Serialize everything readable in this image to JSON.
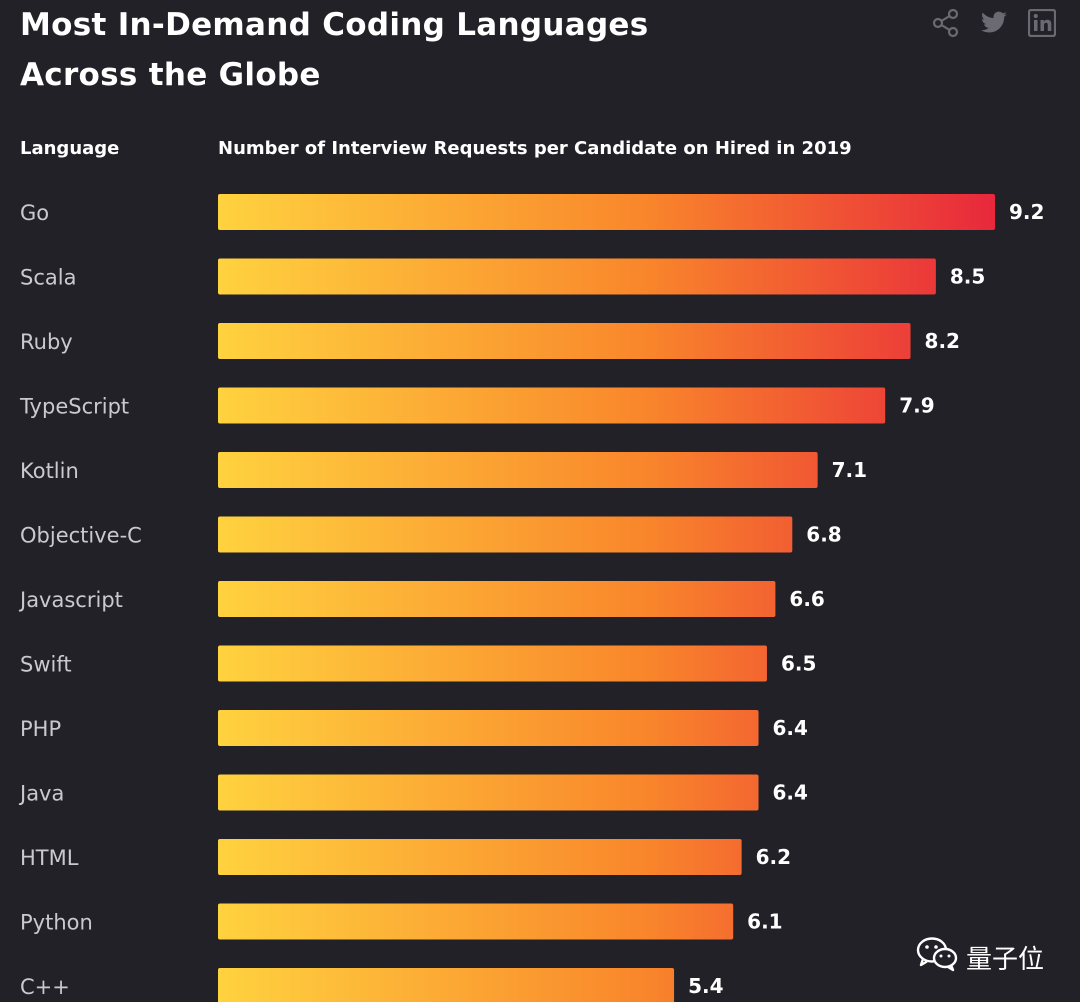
{
  "page": {
    "title_lines": [
      "Most In-Demand Coding Languages",
      "Across the Globe"
    ],
    "icons": [
      "share-icon",
      "twitter-icon",
      "linkedin-icon"
    ],
    "watermark_text": "量子位",
    "watermark_icon": "wechat-icon"
  },
  "chart_data": {
    "type": "bar",
    "orientation": "horizontal",
    "title": "Most In-Demand Coding Languages Across the Globe",
    "category_header": "Language",
    "value_header": "Number of Interview Requests per Candidate on Hired in 2019",
    "categories": [
      "Go",
      "Scala",
      "Ruby",
      "TypeScript",
      "Kotlin",
      "Objective-C",
      "Javascript",
      "Swift",
      "PHP",
      "Java",
      "HTML",
      "Python",
      "C++"
    ],
    "values": [
      9.2,
      8.5,
      8.2,
      7.9,
      7.1,
      6.8,
      6.6,
      6.5,
      6.4,
      6.4,
      6.2,
      6.1,
      5.4
    ],
    "value_labels": [
      "9.2",
      "8.5",
      "8.2",
      "7.9",
      "7.1",
      "6.8",
      "6.6",
      "6.5",
      "6.4",
      "6.4",
      "6.2",
      "6.1",
      "5.4"
    ],
    "xlim": [
      0,
      9.2
    ],
    "gradient": [
      "#ffd23f",
      "#f9862b",
      "#e8283c"
    ],
    "label_color": "#c9c9cf",
    "background": "#222128"
  }
}
